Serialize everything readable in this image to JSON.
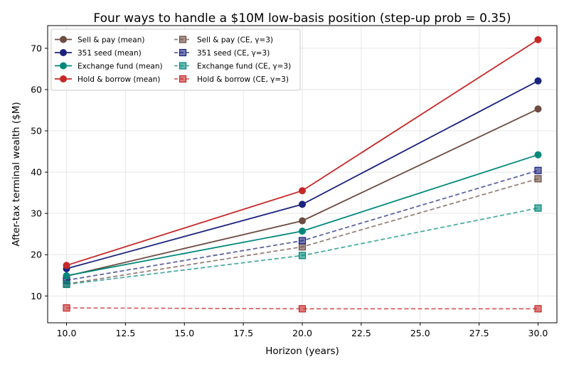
{
  "chart_data": {
    "type": "line",
    "title": "Four ways to handle a $10M low-basis position (step-up prob = 0.35)",
    "xlabel": "Horizon (years)",
    "ylabel": "After-tax terminal wealth ($M)",
    "x": [
      10,
      20,
      30
    ],
    "xlim": [
      9.2,
      30.8
    ],
    "ylim": [
      3.5,
      75.5
    ],
    "xticks": [
      "10.0",
      "12.5",
      "15.0",
      "17.5",
      "20.0",
      "22.5",
      "25.0",
      "27.5",
      "30.0"
    ],
    "yticks": [
      "10",
      "20",
      "30",
      "40",
      "50",
      "60",
      "70"
    ],
    "grid": true,
    "legend_position": "top-left",
    "series": [
      {
        "name": "Sell & pay (mean)",
        "values": [
          14.8,
          28.2,
          55.3
        ],
        "color": "#6d4c41",
        "style": "solid",
        "marker": "circle"
      },
      {
        "name": "Sell & pay (CE, γ=3)",
        "values": [
          12.9,
          21.9,
          38.4
        ],
        "color": "#6d4c41",
        "style": "dashed",
        "marker": "square"
      },
      {
        "name": "351 seed (mean)",
        "values": [
          16.6,
          32.2,
          62.1
        ],
        "color": "#1a237e",
        "style": "solid",
        "marker": "circle"
      },
      {
        "name": "351 seed (CE, γ=3)",
        "values": [
          13.8,
          23.4,
          40.4
        ],
        "color": "#1a237e",
        "style": "dashed",
        "marker": "square"
      },
      {
        "name": "Exchange fund (mean)",
        "values": [
          14.9,
          25.7,
          44.2
        ],
        "color": "#00897b",
        "style": "solid",
        "marker": "circle"
      },
      {
        "name": "Exchange fund (CE, γ=3)",
        "values": [
          12.8,
          19.8,
          31.3
        ],
        "color": "#00897b",
        "style": "dashed",
        "marker": "square"
      },
      {
        "name": "Hold & borrow (mean)",
        "values": [
          17.4,
          35.5,
          72.1
        ],
        "color": "#c62828",
        "style": "solid",
        "marker": "circle"
      },
      {
        "name": "Hold & borrow (CE, γ=3)",
        "values": [
          7.1,
          6.9,
          6.9
        ],
        "color": "#c62828",
        "style": "dashed",
        "marker": "square"
      }
    ]
  }
}
